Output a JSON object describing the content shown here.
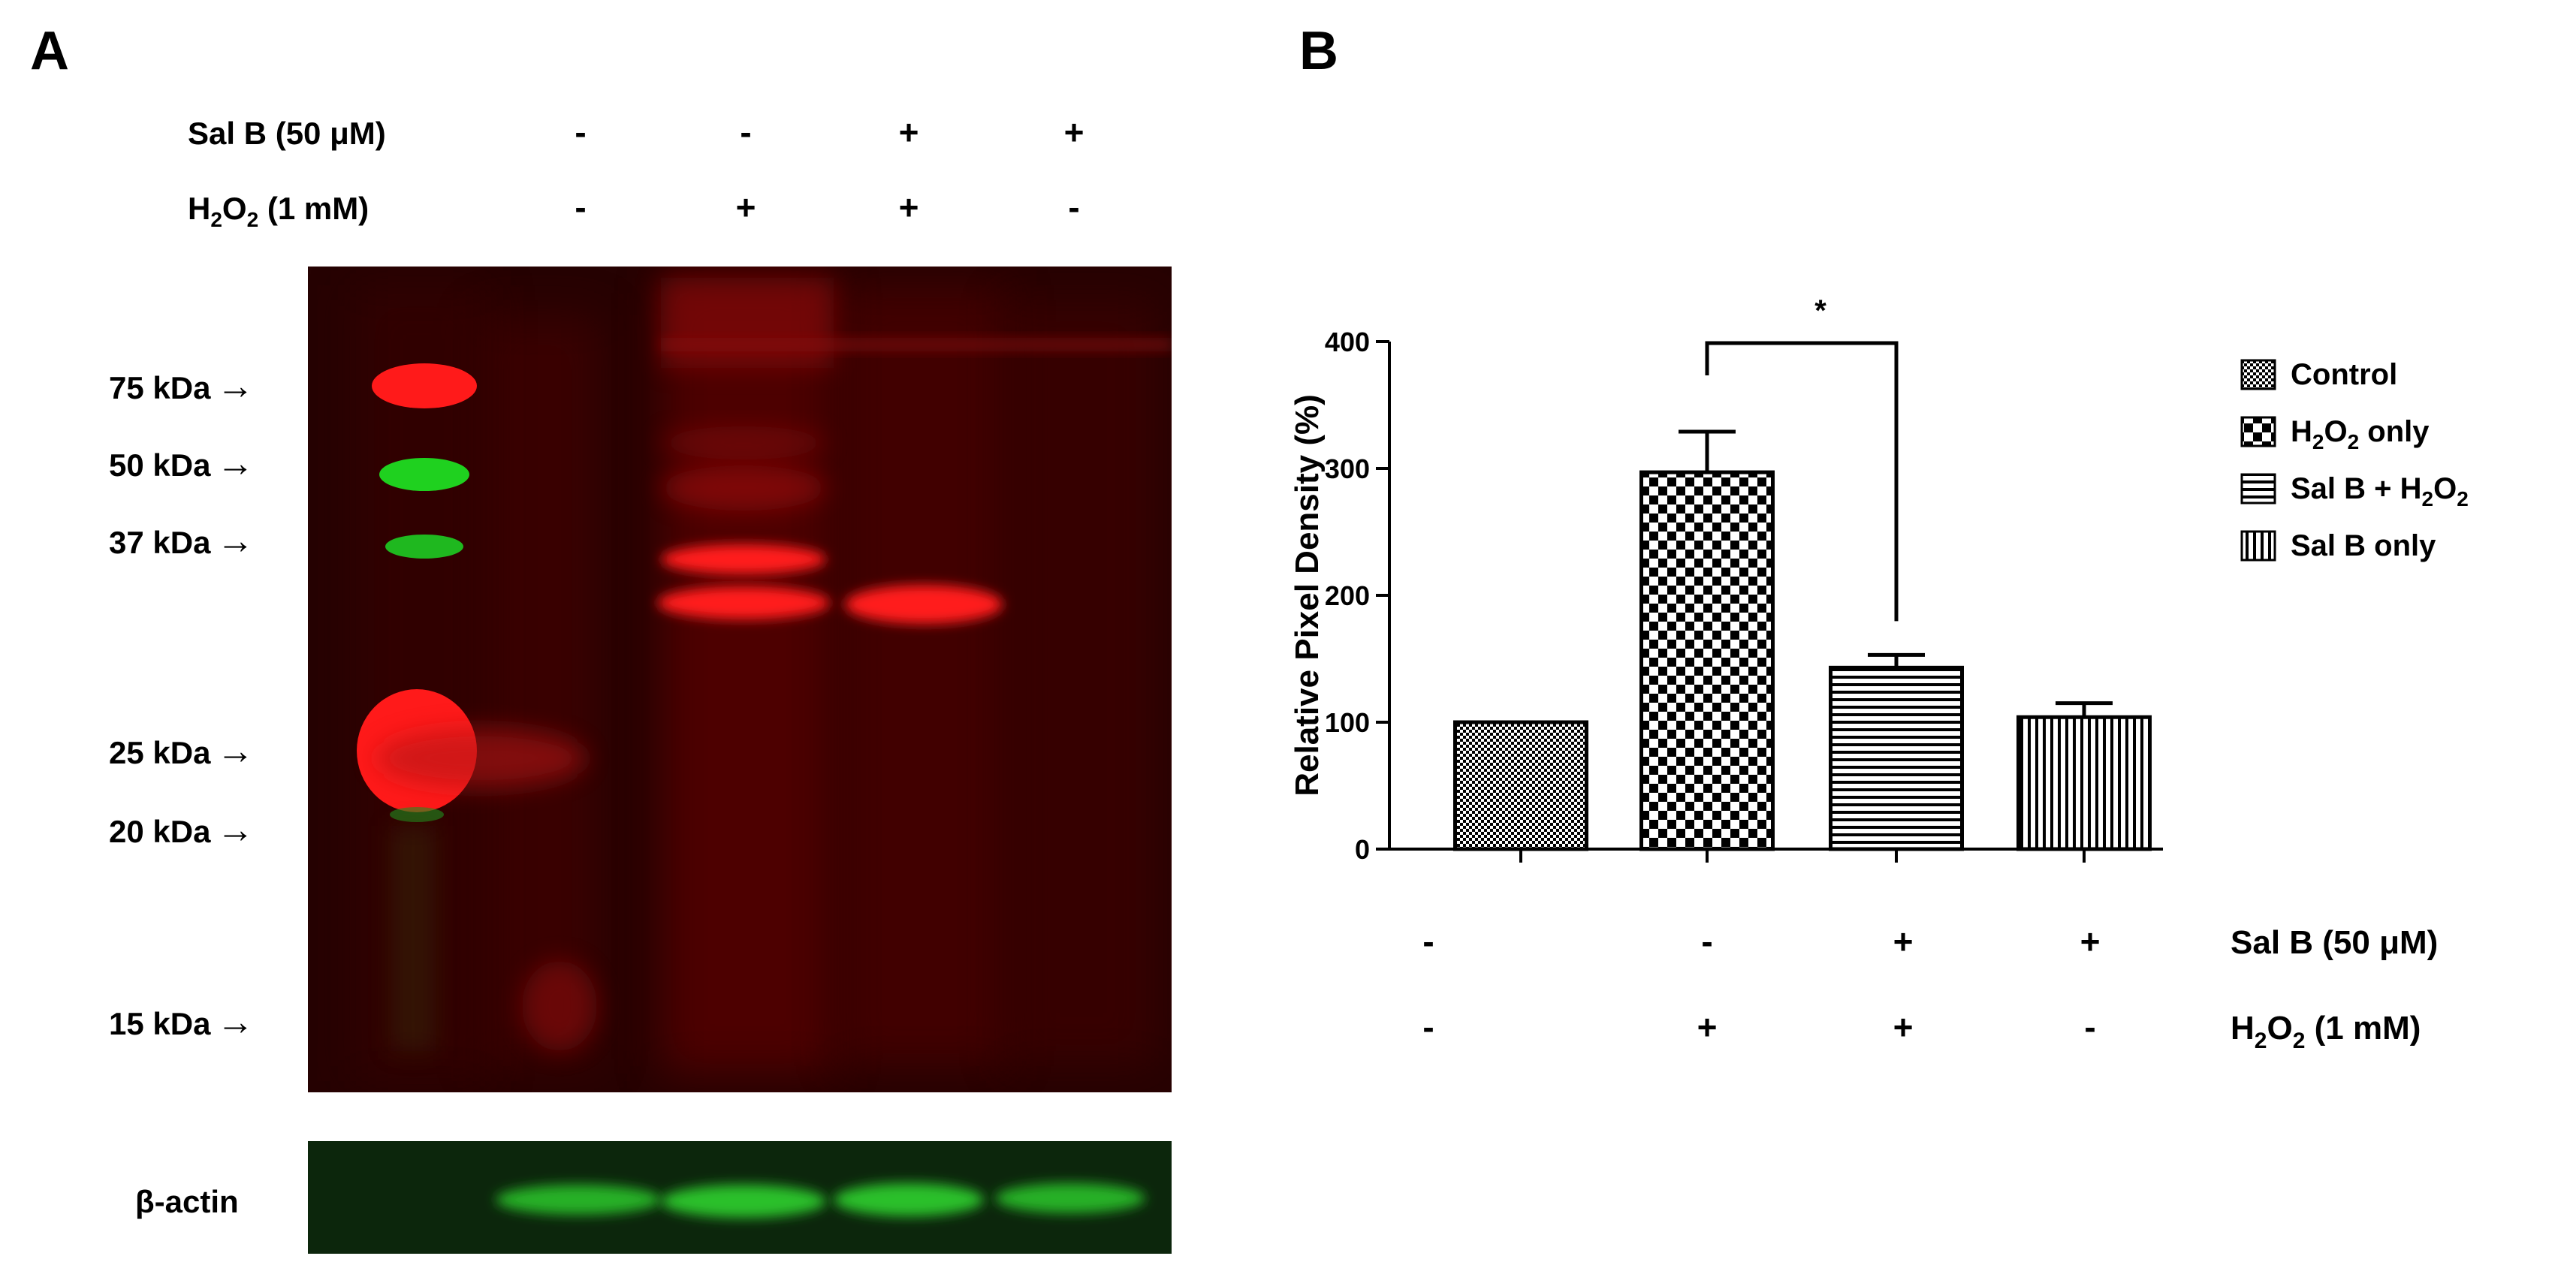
{
  "panel_a": {
    "letter": "A",
    "conditions": [
      {
        "prefix": "Sal B (50 μM)",
        "signs": [
          "-",
          "-",
          "+",
          "+"
        ]
      },
      {
        "prefix_main": "H",
        "prefix_sub1": "2",
        "prefix_mid": "O",
        "prefix_sub2": "2",
        "prefix_tail": " (1 mM)",
        "signs": [
          "-",
          "+",
          "+",
          "-"
        ]
      }
    ],
    "markers": [
      "75 kDa",
      "50 kDa",
      "37 kDa",
      "25 kDa",
      "20 kDa",
      "15 kDa"
    ],
    "arrow_glyph": "→",
    "loading_control": "β-actin",
    "colors": {
      "background": "#2a0202",
      "ladder_red": "#ff1a1a",
      "ladder_green": "#1fd11f",
      "actin_bg": "#0d2a0d",
      "actin_band": "#2bbf2b"
    }
  },
  "panel_b": {
    "letter": "B",
    "significance": "*",
    "legend": [
      {
        "label": "Control",
        "pattern": "fine-check"
      },
      {
        "label_main": "H",
        "label_sub1": "2",
        "label_mid": "O",
        "label_sub2": "2",
        "label_tail": " only",
        "pattern": "coarse-check"
      },
      {
        "label_main": "Sal B + H",
        "label_sub": "2",
        "label_mid": "O",
        "label_sub2": "2",
        "label_tail": "",
        "pattern": "horizontal-lines"
      },
      {
        "label": "Sal B only",
        "pattern": "vertical-lines"
      }
    ],
    "conditions": [
      {
        "prefix": "Sal B  (50 μM)",
        "signs": [
          "-",
          "-",
          "+",
          "+"
        ]
      },
      {
        "prefix_main": "H",
        "prefix_sub1": "2",
        "prefix_mid": "O",
        "prefix_sub2": "2",
        "prefix_tail": "  (1 mM)",
        "signs": [
          "-",
          "+",
          "+",
          "-"
        ]
      }
    ]
  },
  "chart_data": {
    "type": "bar",
    "categories": [
      "Control",
      "H2O2 only",
      "Sal B + H2O2",
      "Sal B only"
    ],
    "values": [
      100,
      297,
      143,
      104
    ],
    "errors": [
      0,
      32,
      10,
      11
    ],
    "ylabel": "Relative Pixel Density (%)",
    "xlabel": "",
    "ylim": [
      0,
      400
    ],
    "yticks": [
      0,
      100,
      200,
      300,
      400
    ],
    "significance": [
      {
        "from": 1,
        "to": 2,
        "label": "*"
      }
    ],
    "legend_position": "right",
    "grid": false
  }
}
